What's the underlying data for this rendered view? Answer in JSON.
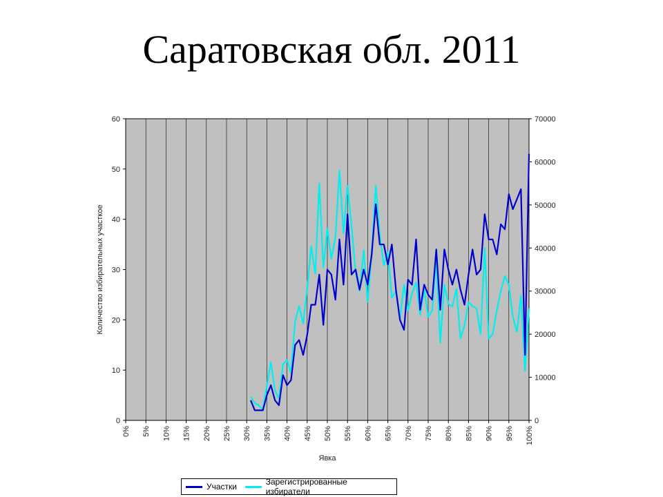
{
  "page": {
    "title": "Саратовская обл. 2011"
  },
  "chart_data": {
    "type": "line",
    "xlabel": "Явка",
    "ylabel": "Количество избирательных участкое",
    "x_ticks": [
      "0%",
      "5%",
      "10%",
      "15%",
      "20%",
      "25%",
      "30%",
      "35%",
      "40%",
      "45%",
      "50%",
      "55%",
      "60%",
      "65%",
      "70%",
      "75%",
      "80%",
      "85%",
      "90%",
      "95%",
      "100%"
    ],
    "xlim": [
      0,
      100
    ],
    "ylim_left": [
      0,
      60
    ],
    "y_ticks_left": [
      0,
      10,
      20,
      30,
      40,
      50,
      60
    ],
    "ylim_right": [
      0,
      70000
    ],
    "y_ticks_right": [
      0,
      10000,
      20000,
      30000,
      40000,
      50000,
      60000,
      70000
    ],
    "grid": true,
    "legend_position": "bottom",
    "plot_background": "#c0c0c0",
    "series": [
      {
        "name": "Участки",
        "axis": "left",
        "color": "#0000cc",
        "x": [
          31,
          32,
          33,
          34,
          35,
          36,
          37,
          38,
          39,
          40,
          41,
          42,
          43,
          44,
          45,
          46,
          47,
          48,
          49,
          50,
          51,
          52,
          53,
          54,
          55,
          56,
          57,
          58,
          59,
          60,
          61,
          62,
          63,
          64,
          65,
          66,
          67,
          68,
          69,
          70,
          71,
          72,
          73,
          74,
          75,
          76,
          77,
          78,
          79,
          80,
          81,
          82,
          83,
          84,
          85,
          86,
          87,
          88,
          89,
          90,
          91,
          92,
          93,
          94,
          95,
          96,
          97,
          98,
          99,
          100
        ],
        "values": [
          4,
          2,
          2,
          2,
          5,
          7,
          4,
          3,
          9,
          7,
          8,
          15,
          16,
          13,
          17,
          23,
          23,
          29,
          19,
          30,
          29,
          24,
          36,
          27,
          41,
          29,
          30,
          26,
          30,
          27,
          33,
          43,
          35,
          35,
          31,
          35,
          26,
          20,
          18,
          28,
          27,
          36,
          22,
          27,
          25,
          24,
          34,
          22,
          34,
          30,
          27,
          30,
          26,
          23,
          29,
          34,
          29,
          30,
          41,
          36,
          36,
          33,
          39,
          38,
          45,
          42,
          44,
          46,
          13,
          53
        ]
      },
      {
        "name": "Зарегистрированные избиратели",
        "axis": "right",
        "color": "#00eeee",
        "x": [
          31,
          32,
          33,
          34,
          35,
          36,
          37,
          38,
          39,
          40,
          41,
          42,
          43,
          44,
          45,
          46,
          47,
          48,
          49,
          50,
          51,
          52,
          53,
          54,
          55,
          56,
          57,
          58,
          59,
          60,
          61,
          62,
          63,
          64,
          65,
          66,
          67,
          68,
          69,
          70,
          71,
          72,
          73,
          74,
          75,
          76,
          77,
          78,
          79,
          80,
          81,
          82,
          83,
          84,
          85,
          86,
          87,
          88,
          89,
          90,
          91,
          92,
          93,
          94,
          95,
          96,
          97,
          98,
          99,
          100
        ],
        "values": [
          5500,
          4000,
          3500,
          2500,
          8000,
          13500,
          7000,
          5000,
          13000,
          14000,
          11000,
          23000,
          26500,
          22500,
          30500,
          40500,
          34000,
          55000,
          35500,
          44500,
          37500,
          42500,
          58000,
          43500,
          54500,
          45000,
          34500,
          30000,
          39500,
          27500,
          38500,
          54500,
          43000,
          36000,
          39000,
          28500,
          30000,
          23500,
          31500,
          25500,
          29500,
          32000,
          24500,
          30500,
          24000,
          25500,
          37500,
          18000,
          31500,
          27000,
          26500,
          30500,
          19000,
          22000,
          27500,
          26500,
          26000,
          20000,
          40000,
          19000,
          20000,
          25500,
          30000,
          33500,
          31500,
          24000,
          20500,
          29000,
          11500,
          26000
        ]
      }
    ]
  }
}
